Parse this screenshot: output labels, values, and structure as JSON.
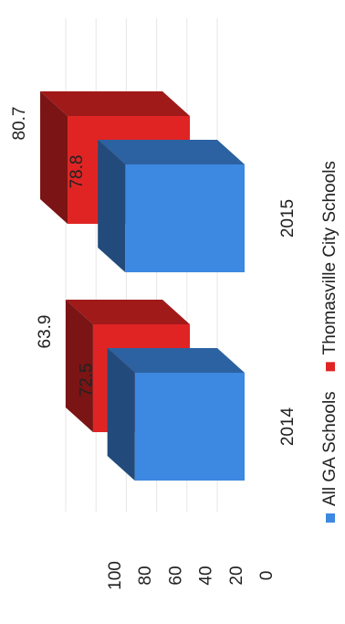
{
  "chart_data": {
    "type": "bar",
    "title": "",
    "xlabel": "",
    "ylabel": "",
    "categories": [
      "2014",
      "2015"
    ],
    "series": [
      {
        "name": "All GA Schools",
        "color": "#3d88e0",
        "values": [
          72.5,
          78.8
        ]
      },
      {
        "name": "Thomasville City Schools",
        "color": "#e02424",
        "values": [
          63.9,
          80.7
        ]
      }
    ],
    "ylim": [
      0,
      100
    ],
    "y_ticks": [
      "0",
      "20",
      "40",
      "60",
      "80",
      "100"
    ],
    "style": "3d",
    "orientation": "rotated-90-clockwise",
    "legend_position": "bottom",
    "grid": true
  }
}
